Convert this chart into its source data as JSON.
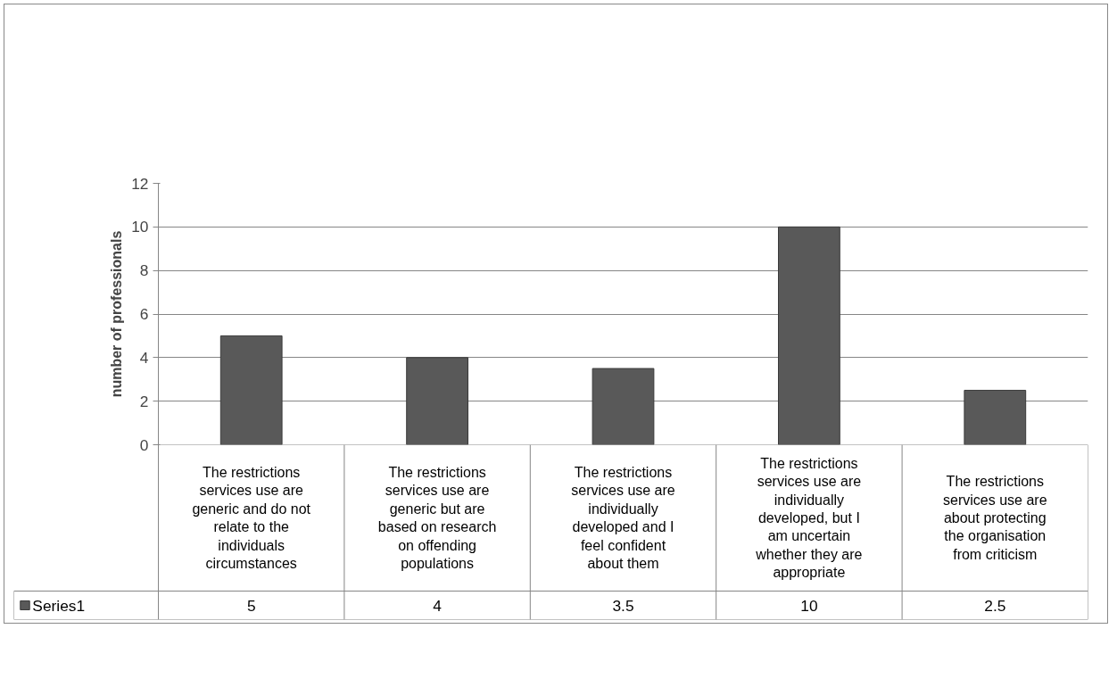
{
  "chart_data": {
    "type": "bar",
    "ylabel": "number of professionals",
    "categories": [
      "The restrictions services use are generic and do not relate to the individuals circumstances",
      "The restrictions services use are generic but are based on research on offending populations",
      "The restrictions services use are individually developed and I feel confident about them",
      "The restrictions services use are individually developed, but I am uncertain whether they are appropriate",
      "The restrictions services use are about protecting the organisation from criticism"
    ],
    "series": [
      {
        "name": "Series1",
        "color": "#595959",
        "values": [
          5,
          4,
          3.5,
          10,
          2.5
        ]
      }
    ],
    "ylim": [
      0,
      12
    ],
    "yticks": [
      0,
      2,
      4,
      6,
      8,
      10,
      12
    ],
    "grid": "y",
    "data_labels": true
  }
}
